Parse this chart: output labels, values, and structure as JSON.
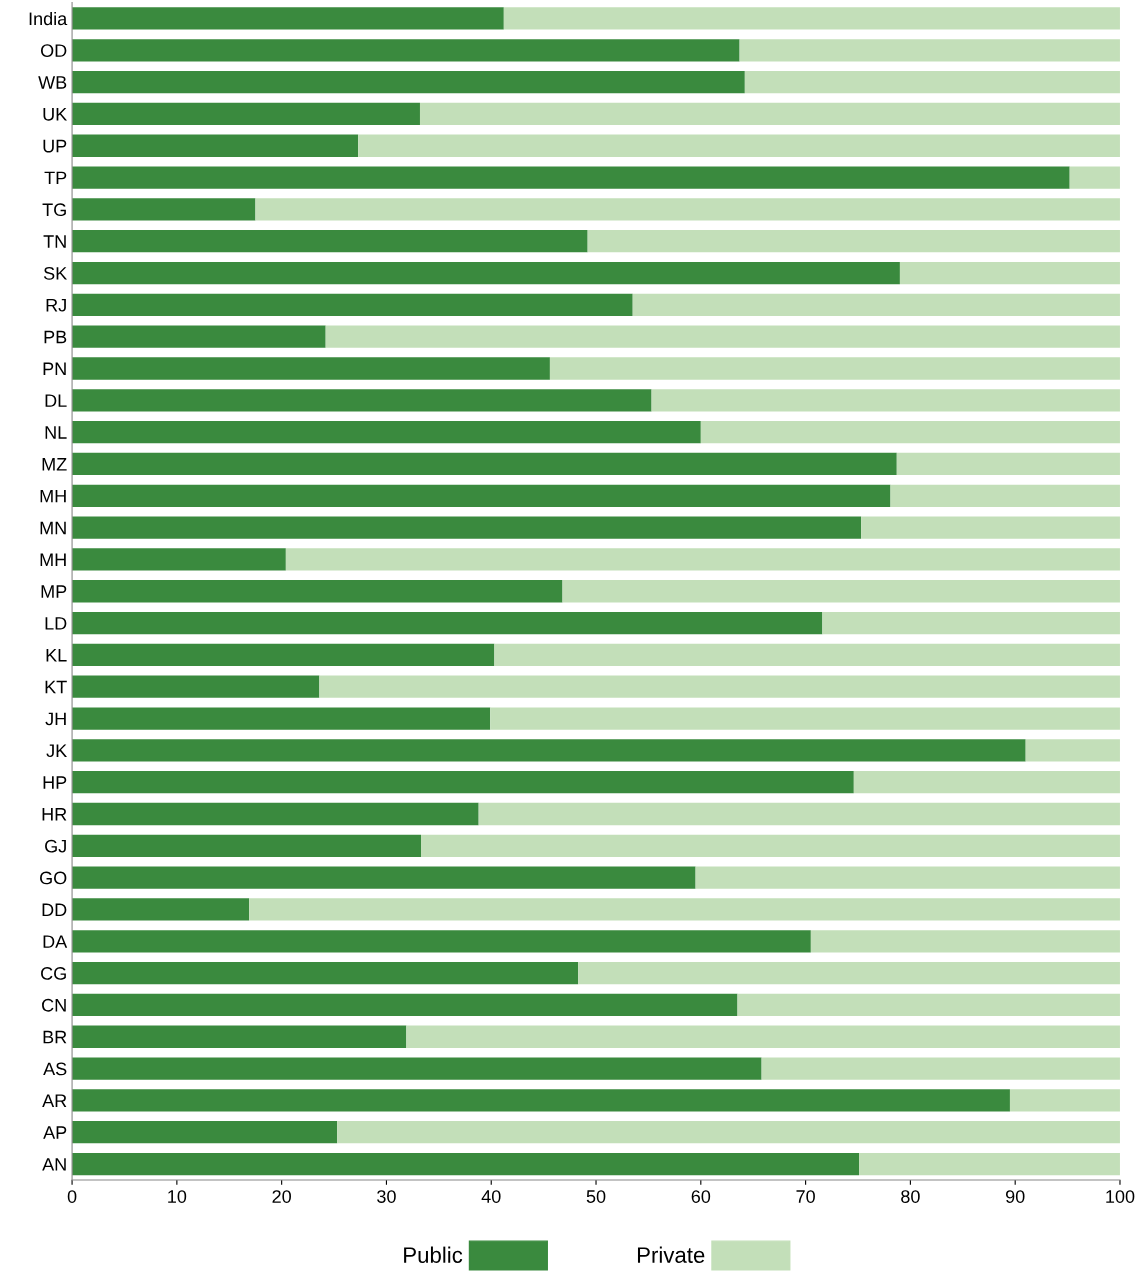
{
  "chart_data": {
    "type": "bar",
    "orientation": "horizontal",
    "stacked": true,
    "categories": [
      "India",
      "OD",
      "WB",
      "UK",
      "UP",
      "TP",
      "TG",
      "TN",
      "SK",
      "RJ",
      "PB",
      "PN",
      "DL",
      "NL",
      "MZ",
      "MH",
      "MN",
      "MH",
      "MP",
      "LD",
      "KL",
      "KT",
      "JH",
      "JK",
      "HP",
      "HR",
      "GJ",
      "GO",
      "DD",
      "DA",
      "CG",
      "CN",
      "BR",
      "AS",
      "AR",
      "AP",
      "AN"
    ],
    "series": [
      {
        "name": "Public",
        "color": "#3a8a3e",
        "values": [
          41.2,
          63.7,
          64.2,
          33.2,
          27.3,
          95.2,
          17.5,
          49.2,
          79.0,
          53.5,
          24.2,
          45.6,
          55.3,
          60.0,
          78.7,
          78.1,
          75.3,
          20.4,
          46.8,
          71.6,
          40.3,
          23.6,
          39.9,
          91.0,
          74.6,
          38.8,
          33.3,
          59.5,
          16.9,
          70.5,
          48.3,
          63.5,
          31.9,
          65.8,
          89.5,
          25.3,
          75.1
        ]
      },
      {
        "name": "Private",
        "color": "#c3dfb9",
        "values": [
          58.8,
          36.3,
          35.8,
          66.8,
          72.7,
          4.8,
          82.5,
          50.8,
          21.0,
          46.5,
          75.8,
          54.4,
          44.7,
          40.0,
          21.3,
          21.9,
          24.7,
          79.6,
          53.2,
          28.4,
          59.7,
          76.4,
          60.1,
          9.0,
          25.4,
          61.2,
          66.7,
          40.5,
          83.1,
          29.5,
          51.7,
          36.5,
          68.1,
          34.2,
          10.5,
          74.7,
          24.9
        ]
      }
    ],
    "xlim": [
      0,
      100
    ],
    "xticks": [
      0,
      10,
      20,
      30,
      40,
      50,
      60,
      70,
      80,
      90,
      100
    ],
    "grid": false,
    "legend": "bottom"
  }
}
